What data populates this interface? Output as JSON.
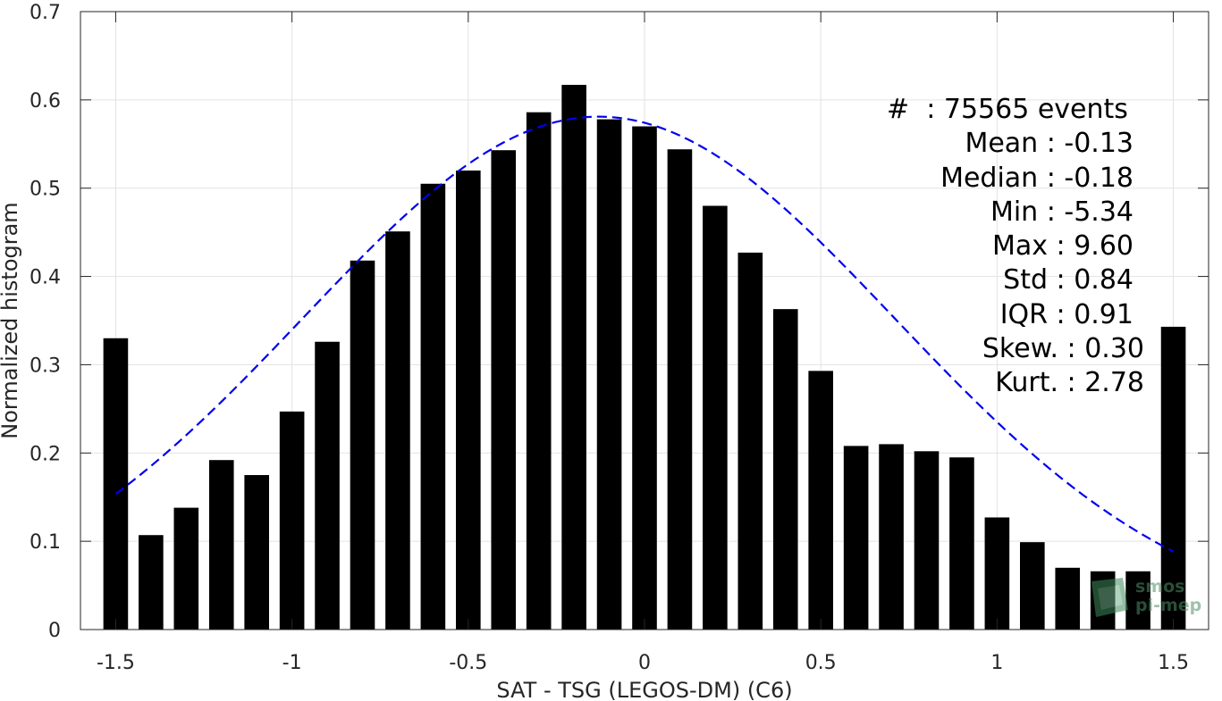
{
  "chart_data": {
    "type": "bar",
    "xlabel": "SAT - TSG (LEGOS-DM) (C6)",
    "ylabel": "Normalized histogram",
    "xlim": [
      -1.6,
      1.6
    ],
    "ylim": [
      0,
      0.7
    ],
    "grid": true,
    "x_ticks": [
      -1.5,
      -1,
      -0.5,
      0,
      0.5,
      1,
      1.5
    ],
    "x_tick_labels": [
      "-1.5",
      "-1",
      "-0.5",
      "0",
      "0.5",
      "1",
      "1.5"
    ],
    "y_ticks": [
      0,
      0.1,
      0.2,
      0.3,
      0.4,
      0.5,
      0.6,
      0.7
    ],
    "y_tick_labels": [
      "0",
      "0.1",
      "0.2",
      "0.3",
      "0.4",
      "0.5",
      "0.6",
      "0.7"
    ],
    "bar_color": "#000000",
    "fit_color": "#0000ee",
    "series": [
      {
        "values": [
          {
            "x": -1.5,
            "y": 0.33
          },
          {
            "x": -1.4,
            "y": 0.107
          },
          {
            "x": -1.3,
            "y": 0.138
          },
          {
            "x": -1.2,
            "y": 0.192
          },
          {
            "x": -1.1,
            "y": 0.175
          },
          {
            "x": -1.0,
            "y": 0.247
          },
          {
            "x": -0.9,
            "y": 0.326
          },
          {
            "x": -0.8,
            "y": 0.418
          },
          {
            "x": -0.7,
            "y": 0.451
          },
          {
            "x": -0.6,
            "y": 0.505
          },
          {
            "x": -0.5,
            "y": 0.52
          },
          {
            "x": -0.4,
            "y": 0.543
          },
          {
            "x": -0.3,
            "y": 0.586
          },
          {
            "x": -0.2,
            "y": 0.617
          },
          {
            "x": -0.1,
            "y": 0.578
          },
          {
            "x": 0.0,
            "y": 0.57
          },
          {
            "x": 0.1,
            "y": 0.544
          },
          {
            "x": 0.2,
            "y": 0.48
          },
          {
            "x": 0.3,
            "y": 0.427
          },
          {
            "x": 0.4,
            "y": 0.363
          },
          {
            "x": 0.5,
            "y": 0.293
          },
          {
            "x": 0.6,
            "y": 0.208
          },
          {
            "x": 0.7,
            "y": 0.21
          },
          {
            "x": 0.8,
            "y": 0.202
          },
          {
            "x": 0.9,
            "y": 0.195
          },
          {
            "x": 1.0,
            "y": 0.127
          },
          {
            "x": 1.1,
            "y": 0.099
          },
          {
            "x": 1.2,
            "y": 0.07
          },
          {
            "x": 1.3,
            "y": 0.066
          },
          {
            "x": 1.4,
            "y": 0.066
          },
          {
            "x": 1.5,
            "y": 0.343
          }
        ]
      },
      {
        "type": "line",
        "style": "dashed",
        "fit": {
          "mean": -0.13,
          "std": 0.84,
          "peak": 0.581,
          "x_range": [
            -1.5,
            1.5
          ]
        }
      }
    ]
  },
  "stats": {
    "events": "#  : 75565 events",
    "mean": "Mean : -0.13",
    "median": "Median : -0.18",
    "min": "Min : -5.34",
    "max": "Max : 9.60",
    "std": "Std : 0.84",
    "iqr": "IQR : 0.91",
    "skew": "Skew. : 0.30",
    "kurt": "Kurt. : 2.78"
  },
  "watermark": {
    "line1": "smos",
    "line2": "pi-mep",
    "icon": "pi-mep-logo-icon"
  }
}
